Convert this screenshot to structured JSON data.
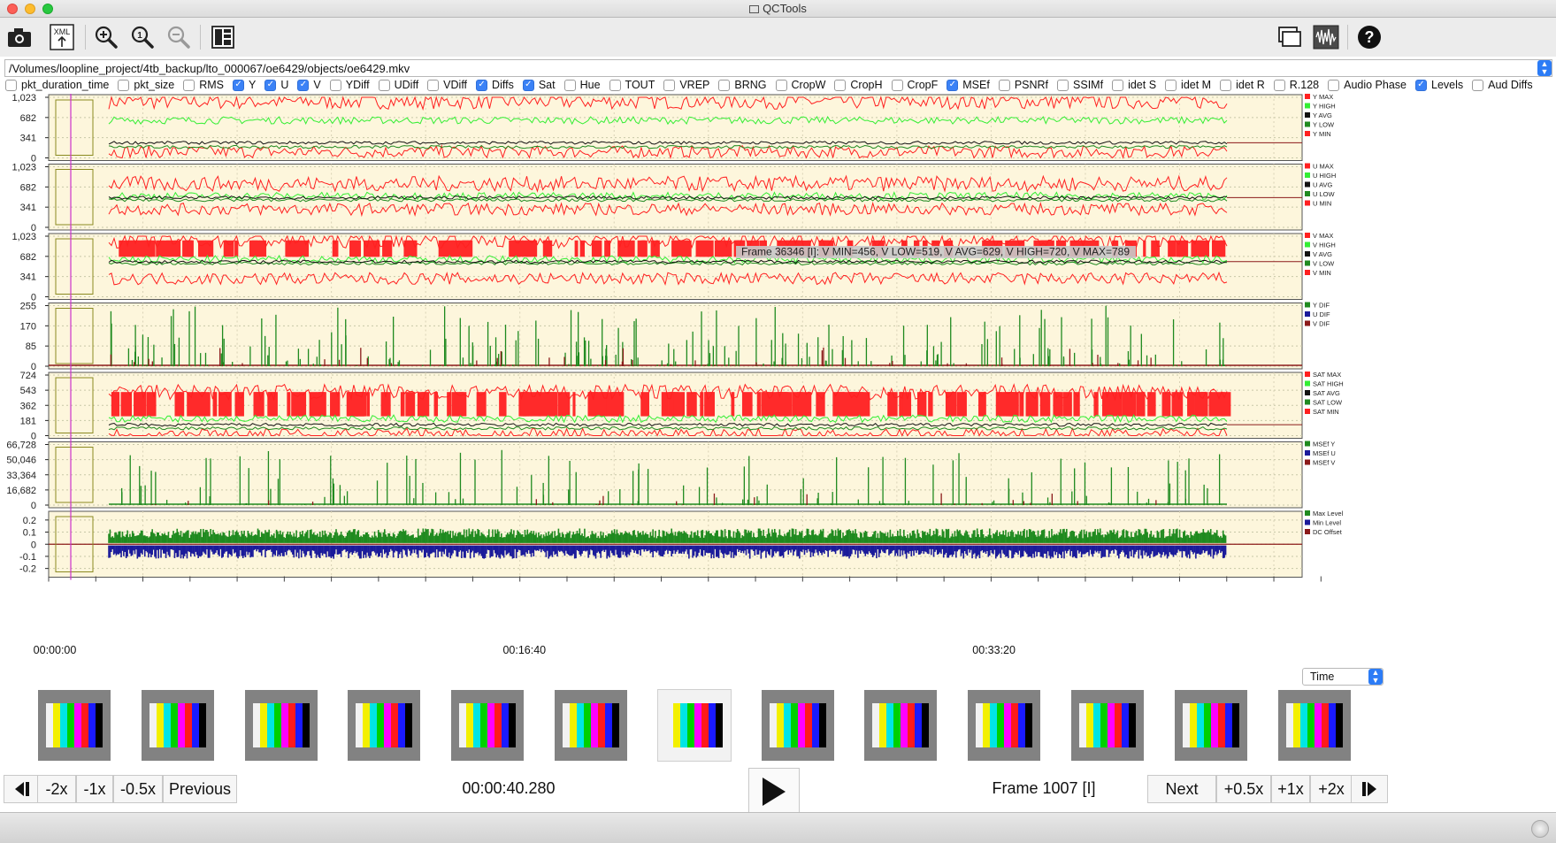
{
  "window": {
    "title": "QCTools"
  },
  "toolbar": {
    "buttons": [
      {
        "name": "open-file-button",
        "icon": "camera-icon"
      },
      {
        "name": "export-xml-button",
        "icon": "xml-export-icon",
        "label": "XML"
      },
      {
        "name": "zoom-in-button",
        "icon": "zoom-in-icon"
      },
      {
        "name": "zoom-reset-button",
        "icon": "zoom-reset-icon"
      },
      {
        "name": "zoom-out-button",
        "icon": "zoom-out-icon"
      },
      {
        "name": "layout-button",
        "icon": "layout-icon"
      }
    ],
    "right_buttons": [
      {
        "name": "windows-button",
        "icon": "windows-icon"
      },
      {
        "name": "waveform-button",
        "icon": "waveform-icon"
      },
      {
        "name": "help-button",
        "icon": "help-icon"
      }
    ]
  },
  "file_path": "/Volumes/loopline_project/4tb_backup/lto_000067/oe6429/objects/oe6429.mkv",
  "filters": [
    {
      "label": "pkt_duration_time",
      "checked": false
    },
    {
      "label": "pkt_size",
      "checked": false
    },
    {
      "label": "RMS",
      "checked": false
    },
    {
      "label": "Y",
      "checked": true
    },
    {
      "label": "U",
      "checked": true
    },
    {
      "label": "V",
      "checked": true
    },
    {
      "label": "YDiff",
      "checked": false
    },
    {
      "label": "UDiff",
      "checked": false
    },
    {
      "label": "VDiff",
      "checked": false
    },
    {
      "label": "Diffs",
      "checked": true
    },
    {
      "label": "Sat",
      "checked": true
    },
    {
      "label": "Hue",
      "checked": false
    },
    {
      "label": "TOUT",
      "checked": false
    },
    {
      "label": "VREP",
      "checked": false
    },
    {
      "label": "BRNG",
      "checked": false
    },
    {
      "label": "CropW",
      "checked": false
    },
    {
      "label": "CropH",
      "checked": false
    },
    {
      "label": "CropF",
      "checked": false
    },
    {
      "label": "MSEf",
      "checked": true
    },
    {
      "label": "PSNRf",
      "checked": false
    },
    {
      "label": "SSIMf",
      "checked": false
    },
    {
      "label": "idet S",
      "checked": false
    },
    {
      "label": "idet M",
      "checked": false
    },
    {
      "label": "idet R",
      "checked": false
    },
    {
      "label": "R.128",
      "checked": false
    },
    {
      "label": "Audio Phase",
      "checked": false
    },
    {
      "label": "Levels",
      "checked": true
    },
    {
      "label": "Aud Diffs",
      "checked": false
    }
  ],
  "graphs": [
    {
      "name": "y",
      "ticks": [
        "1,023",
        "682",
        "341",
        "0"
      ],
      "tick_values": [
        1023,
        682,
        341,
        0
      ],
      "ymax": 1023,
      "legend": [
        {
          "label": "Y MAX",
          "color": "#ff2020"
        },
        {
          "label": "Y HIGH",
          "color": "#33ee33"
        },
        {
          "label": "Y AVG",
          "color": "#111111"
        },
        {
          "label": "Y LOW",
          "color": "#1f8a1f"
        },
        {
          "label": "Y MIN",
          "color": "#ff2020"
        }
      ]
    },
    {
      "name": "u",
      "ticks": [
        "1,023",
        "682",
        "341",
        "0"
      ],
      "tick_values": [
        1023,
        682,
        341,
        0
      ],
      "ymax": 1023,
      "legend": [
        {
          "label": "U MAX",
          "color": "#ff2020"
        },
        {
          "label": "U HIGH",
          "color": "#33ee33"
        },
        {
          "label": "U AVG",
          "color": "#111111"
        },
        {
          "label": "U LOW",
          "color": "#1f8a1f"
        },
        {
          "label": "U MIN",
          "color": "#ff2020"
        }
      ]
    },
    {
      "name": "v",
      "ticks": [
        "1,023",
        "682",
        "341",
        "0"
      ],
      "tick_values": [
        1023,
        682,
        341,
        0
      ],
      "ymax": 1023,
      "legend": [
        {
          "label": "V MAX",
          "color": "#ff2020"
        },
        {
          "label": "V HIGH",
          "color": "#33ee33"
        },
        {
          "label": "V AVG",
          "color": "#111111"
        },
        {
          "label": "V LOW",
          "color": "#1f8a1f"
        },
        {
          "label": "V MIN",
          "color": "#ff2020"
        }
      ]
    },
    {
      "name": "diffs",
      "ticks": [
        "255",
        "170",
        "85",
        "0"
      ],
      "tick_values": [
        255,
        170,
        85,
        0
      ],
      "ymax": 255,
      "legend": [
        {
          "label": "Y DIF",
          "color": "#1f8a1f"
        },
        {
          "label": "U DIF",
          "color": "#1a1a9a"
        },
        {
          "label": "V DIF",
          "color": "#8b1a1a"
        }
      ]
    },
    {
      "name": "sat",
      "ticks": [
        "724",
        "543",
        "362",
        "181",
        "0"
      ],
      "tick_values": [
        724,
        543,
        362,
        181,
        0
      ],
      "ymax": 724,
      "legend": [
        {
          "label": "SAT MAX",
          "color": "#ff2020"
        },
        {
          "label": "SAT HIGH",
          "color": "#33ee33"
        },
        {
          "label": "SAT AVG",
          "color": "#111111"
        },
        {
          "label": "SAT LOW",
          "color": "#1f8a1f"
        },
        {
          "label": "SAT MIN",
          "color": "#ff2020"
        }
      ]
    },
    {
      "name": "msef",
      "ticks": [
        "66,728",
        "50,046",
        "33,364",
        "16,682",
        "0"
      ],
      "tick_values": [
        66728,
        50046,
        33364,
        16682,
        0
      ],
      "ymax": 66728,
      "legend": [
        {
          "label": "MSEf Y",
          "color": "#1f8a1f"
        },
        {
          "label": "MSEf U",
          "color": "#1a1a9a"
        },
        {
          "label": "MSEf V",
          "color": "#8b1a1a"
        }
      ]
    },
    {
      "name": "levels",
      "ticks": [
        "0.2",
        "0.1",
        "0",
        "-0.1",
        "-0.2"
      ],
      "tick_values": [
        0.2,
        0.1,
        0,
        -0.1,
        -0.2
      ],
      "ymin": -0.25,
      "ymax": 0.25,
      "legend": [
        {
          "label": "Max Level",
          "color": "#1f8a1f"
        },
        {
          "label": "Min Level",
          "color": "#1a1a9a"
        },
        {
          "label": "DC Offset",
          "color": "#8b1a1a"
        }
      ]
    }
  ],
  "tooltip": "Frame 36346 [I]: V MIN=456, V LOW=519, V AVG=629, V HIGH=720, V MAX=789",
  "time_axis": {
    "labels": [
      {
        "text": "00:00:00",
        "frac": 0.0
      },
      {
        "text": "00:16:40",
        "frac": 0.377
      },
      {
        "text": "00:33:20",
        "frac": 0.754
      }
    ]
  },
  "x_unit_select": {
    "value": "Time"
  },
  "thumbnails": {
    "count": 13,
    "current_index": 6
  },
  "playback": {
    "step_back_icon": "step-backward-icon",
    "step_forward_icon": "step-forward-icon",
    "play_icon": "play-icon",
    "labels": {
      "minus2": "-2x",
      "minus1": "-1x",
      "minus05": "-0.5x",
      "previous": "Previous",
      "next": "Next",
      "plus05": "+0.5x",
      "plus1": "+1x",
      "plus2": "+2x"
    },
    "timecode": "00:00:40.280",
    "frame": "Frame 1007 [I]"
  },
  "colors": {
    "graph_bg": "#fdf6dc",
    "accent": "#2c7cf6",
    "playhead": "#cc33cc"
  }
}
